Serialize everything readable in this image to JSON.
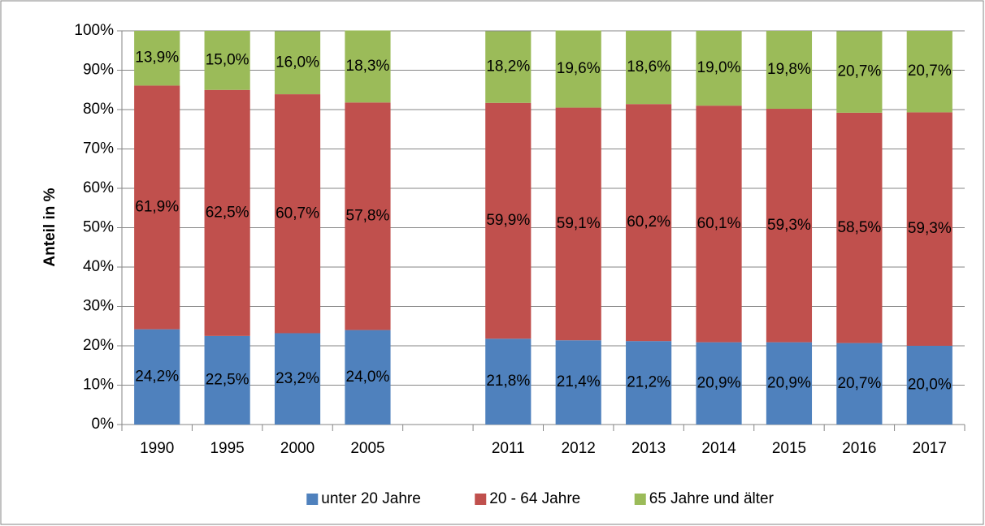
{
  "chart_data": {
    "type": "stacked_bar",
    "y_label": "Anteil in %",
    "categories": [
      "1990",
      "1995",
      "2000",
      "2005",
      null,
      "2011",
      "2012",
      "2013",
      "2014",
      "2015",
      "2016",
      "2017"
    ],
    "series": [
      {
        "name": "unter 20 Jahre",
        "color": "#4f81bd",
        "values": [
          24.2,
          22.5,
          23.2,
          24.0,
          null,
          21.8,
          21.4,
          21.2,
          20.9,
          20.9,
          20.7,
          20.0
        ],
        "value_labels": [
          "24,2%",
          "22,5%",
          "23,2%",
          "24,0%",
          null,
          "21,8%",
          "21,4%",
          "21,2%",
          "20,9%",
          "20,9%",
          "20,7%",
          "20,0%"
        ]
      },
      {
        "name": "20 - 64 Jahre",
        "color": "#c0504d",
        "values": [
          61.9,
          62.5,
          60.7,
          57.8,
          null,
          59.9,
          59.1,
          60.2,
          60.1,
          59.3,
          58.5,
          59.3
        ],
        "value_labels": [
          "61,9%",
          "62,5%",
          "60,7%",
          "57,8%",
          null,
          "59,9%",
          "59,1%",
          "60,2%",
          "60,1%",
          "59,3%",
          "58,5%",
          "59,3%"
        ]
      },
      {
        "name": "65 Jahre und älter",
        "color": "#9bbb59",
        "values": [
          13.9,
          15.0,
          16.0,
          18.3,
          null,
          18.2,
          19.6,
          18.6,
          19.0,
          19.8,
          20.7,
          20.7
        ],
        "value_labels": [
          "13,9%",
          "15,0%",
          "16,0%",
          "18,3%",
          null,
          "18,2%",
          "19,6%",
          "18,6%",
          "19,0%",
          "19,8%",
          "20,7%",
          "20,7%"
        ]
      }
    ],
    "ylim": [
      0,
      100
    ],
    "yticks": [
      {
        "value": 0,
        "label": "0%"
      },
      {
        "value": 10,
        "label": "10%"
      },
      {
        "value": 20,
        "label": "20%"
      },
      {
        "value": 30,
        "label": "30%"
      },
      {
        "value": 40,
        "label": "40%"
      },
      {
        "value": 50,
        "label": "50%"
      },
      {
        "value": 60,
        "label": "60%"
      },
      {
        "value": 70,
        "label": "70%"
      },
      {
        "value": 80,
        "label": "80%"
      },
      {
        "value": 90,
        "label": "90%"
      },
      {
        "value": 100,
        "label": "100%"
      }
    ],
    "grid": true,
    "legend": "bottom"
  }
}
